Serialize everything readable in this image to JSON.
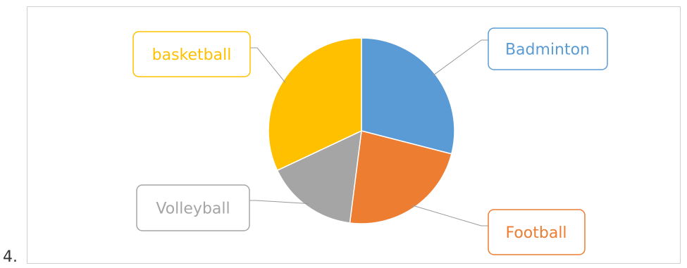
{
  "item_number": "4.",
  "chart_data": {
    "type": "pie",
    "categories": [
      "Badminton",
      "Football",
      "Volleyball",
      "basketball"
    ],
    "values": [
      29,
      23,
      16,
      32
    ],
    "colors": [
      "#5B9BD5",
      "#ED7D31",
      "#A5A5A5",
      "#FFC000"
    ],
    "title": "",
    "legend": "none",
    "data_labels": "category-name callouts with leader lines"
  }
}
